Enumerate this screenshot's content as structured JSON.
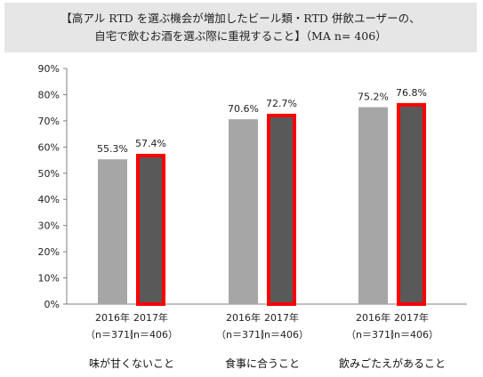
{
  "chart_data": {
    "type": "bar",
    "title_lines": [
      "【高アル RTD を選ぶ機会が増加したビール類・RTD 併飲ユーザーの、",
      "自宅で飲むお酒を選ぶ際に重視すること】（MA n= 406）"
    ],
    "ylim": [
      0,
      90
    ],
    "yticks": [
      "0%",
      "10%",
      "20%",
      "30%",
      "40%",
      "50%",
      "60%",
      "70%",
      "80%",
      "90%"
    ],
    "categories": [
      "味が甘くないこと",
      "食事に合うこと",
      "飲みごたえがあること"
    ],
    "series": [
      {
        "year_label": "2016年",
        "n_label": "（n＝371）",
        "values": [
          55.3,
          70.6,
          75.2
        ],
        "value_labels": [
          "55.3%",
          "70.6%",
          "75.2%"
        ],
        "color": "#a6a6a6"
      },
      {
        "year_label": "2017年",
        "n_label": "（n＝406）",
        "values": [
          57.4,
          72.7,
          76.8
        ],
        "value_labels": [
          "57.4%",
          "72.7%",
          "76.8%"
        ],
        "color": "#595959",
        "outline": "#ff0000"
      }
    ]
  }
}
